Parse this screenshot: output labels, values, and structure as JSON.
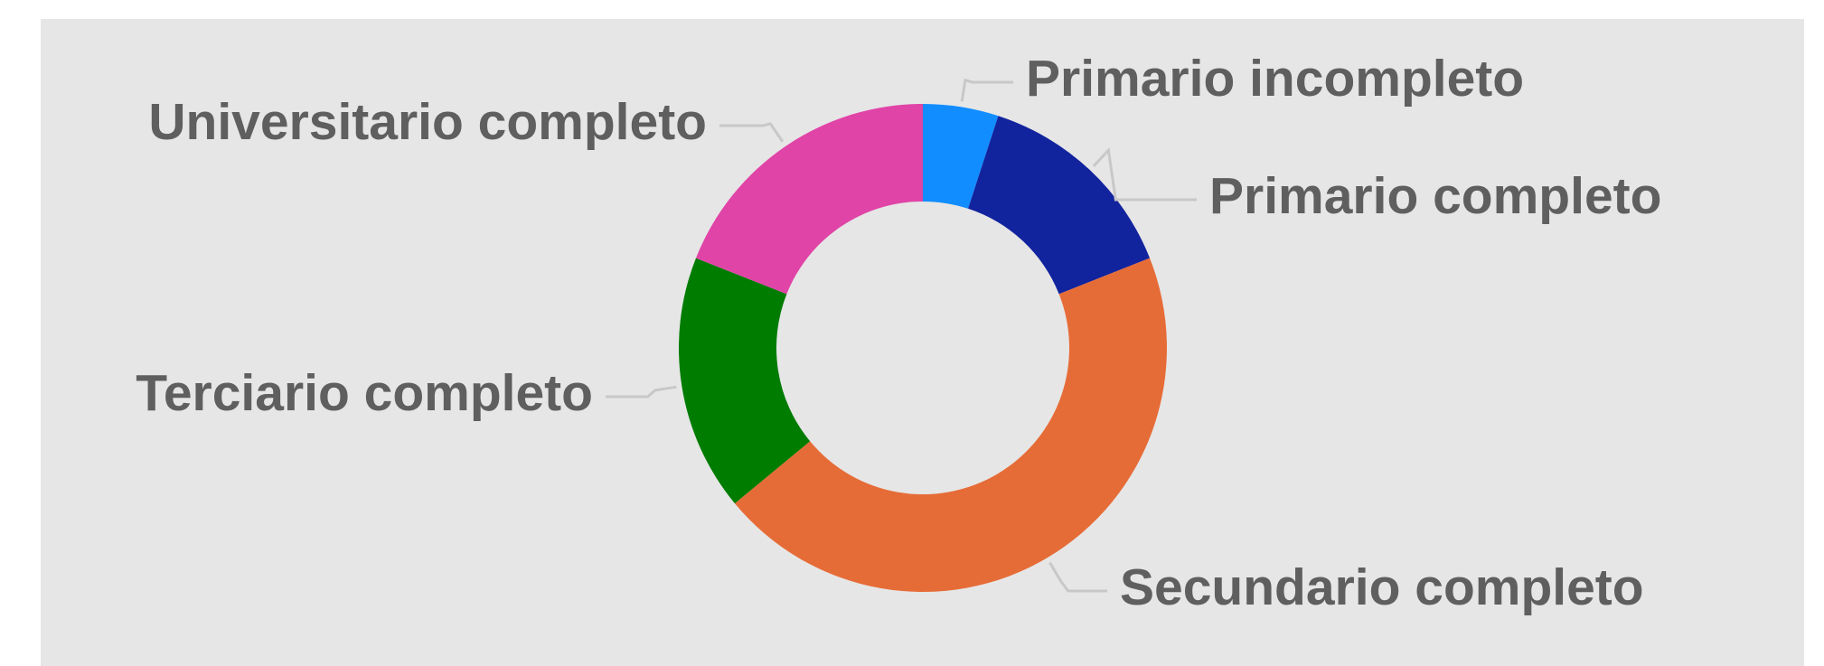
{
  "chart_data": {
    "type": "donut",
    "categories": [
      "Primario incompleto",
      "Primario completo",
      "Secundario completo",
      "Terciario completo",
      "Universitario completo"
    ],
    "values": [
      5,
      14,
      45,
      17,
      19
    ],
    "colors": [
      "#118dff",
      "#12239e",
      "#e66c37",
      "#007c00",
      "#e044a7"
    ]
  }
}
